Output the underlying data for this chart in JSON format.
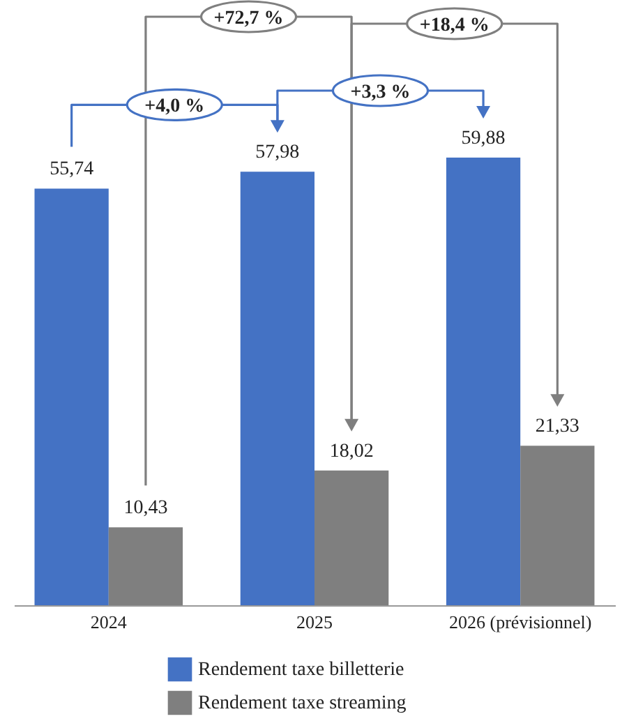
{
  "chart_data": {
    "type": "bar",
    "categories": [
      "2024",
      "2025",
      "2026 (prévisionnel)"
    ],
    "series": [
      {
        "name": "Rendement taxe billetterie",
        "color": "#4472c4",
        "values": [
          55.74,
          57.98,
          59.88
        ],
        "value_labels": [
          "55,74",
          "57,98",
          "59,88"
        ]
      },
      {
        "name": "Rendement taxe streaming",
        "color": "#7f7f7f",
        "values": [
          10.43,
          18.02,
          21.33
        ],
        "value_labels": [
          "10,43",
          "18,02",
          "21,33"
        ]
      }
    ],
    "legend": "bottom",
    "grid": false,
    "annotations": [
      "+72,7 %",
      "+18,4 %",
      "+4,0 %",
      "+3,3 %"
    ]
  }
}
